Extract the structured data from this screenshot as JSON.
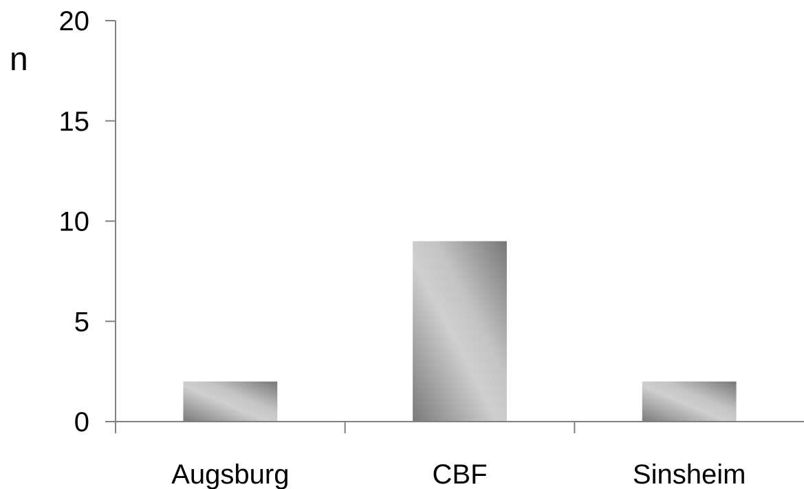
{
  "chart_data": {
    "type": "bar",
    "categories": [
      "Augsburg",
      "CBF",
      "Sinsheim"
    ],
    "values": [
      2,
      9,
      2
    ],
    "ylabel": "n",
    "xlabel": "",
    "ylim": [
      0,
      20
    ],
    "yticks": [
      "0",
      "5",
      "10",
      "15",
      "20"
    ],
    "grid": false,
    "legend": "none",
    "bar_color": "#b8b8b8",
    "axis_color": "#808080"
  }
}
